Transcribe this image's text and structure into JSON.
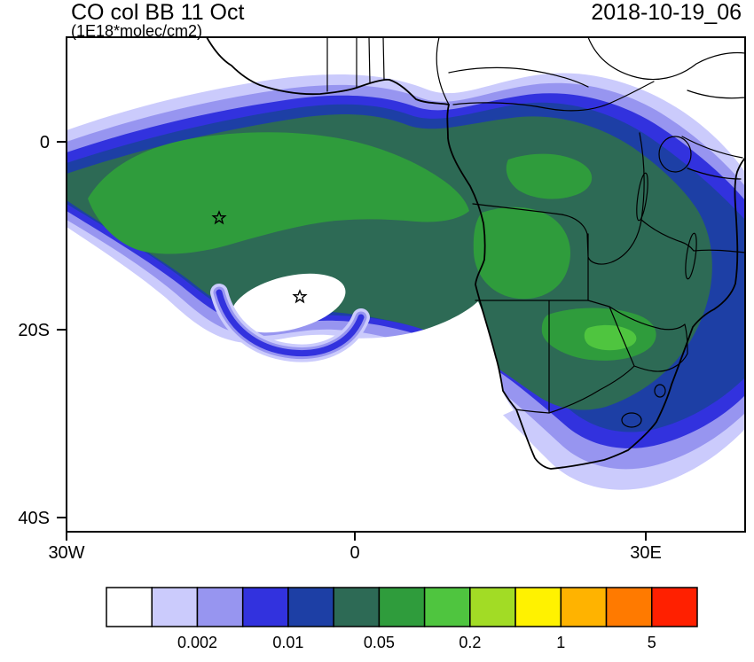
{
  "titles": {
    "left": "CO col BB 11 Oct",
    "units": "(1E18*molec/cm2)",
    "right": "2018-10-19_06"
  },
  "axes": {
    "x_ticks": [
      "30W",
      "0",
      "30E"
    ],
    "y_ticks": [
      "0",
      "20S",
      "40S"
    ]
  },
  "colorbar": {
    "colors": [
      "#FFFFFF",
      "#CBCBFC",
      "#9795F0",
      "#3232DE",
      "#1D3FA5",
      "#2D6A55",
      "#2F9C3C",
      "#4FC53F",
      "#A2DC25",
      "#FFF200",
      "#FFB300",
      "#FF7A00",
      "#FF2000"
    ],
    "tick_labels": [
      "0.002",
      "0.01",
      "0.05",
      "0.2",
      "1",
      "5"
    ],
    "tick_boundary_indices": [
      2,
      4,
      6,
      8,
      10,
      12
    ]
  },
  "chart_data": {
    "type": "heatmap",
    "subtype": "filled-contour-map",
    "title": "CO col BB 11 Oct",
    "units": "1E18*molec/cm2",
    "timestamp_label": "2018-10-19_06",
    "map_extent": {
      "lon_min": -30,
      "lon_max": 40,
      "lat_min": -41.5,
      "lat_max": 11
    },
    "x_tick_values_deg_lon": [
      -30,
      0,
      30
    ],
    "y_tick_values_deg_lat": [
      0,
      -20,
      -40
    ],
    "contour_levels": [
      0.001,
      0.002,
      0.005,
      0.01,
      0.02,
      0.05,
      0.1,
      0.2,
      0.5,
      1,
      2,
      5
    ],
    "labeled_levels": [
      0.002,
      0.01,
      0.05,
      0.2,
      1,
      5
    ],
    "palette": [
      "#FFFFFF",
      "#CBCBFC",
      "#9795F0",
      "#3232DE",
      "#1D3FA5",
      "#2D6A55",
      "#2F9C3C",
      "#4FC53F",
      "#A2DC25",
      "#FFF200",
      "#FFB300",
      "#FF7A00",
      "#FF2000"
    ],
    "field_summary": "CO column plume (max ~0.05-0.2) extending west from southern Africa over the South Atlantic, with anticyclonic hook near 15W,15S and secondary maxima over Angola/Zambia",
    "markers": [
      {
        "type": "star",
        "lon": -14.2,
        "lat": -8.1
      },
      {
        "type": "star",
        "lon": -5.8,
        "lat": -16.5
      }
    ],
    "legend_position": "bottom",
    "grid": false
  }
}
